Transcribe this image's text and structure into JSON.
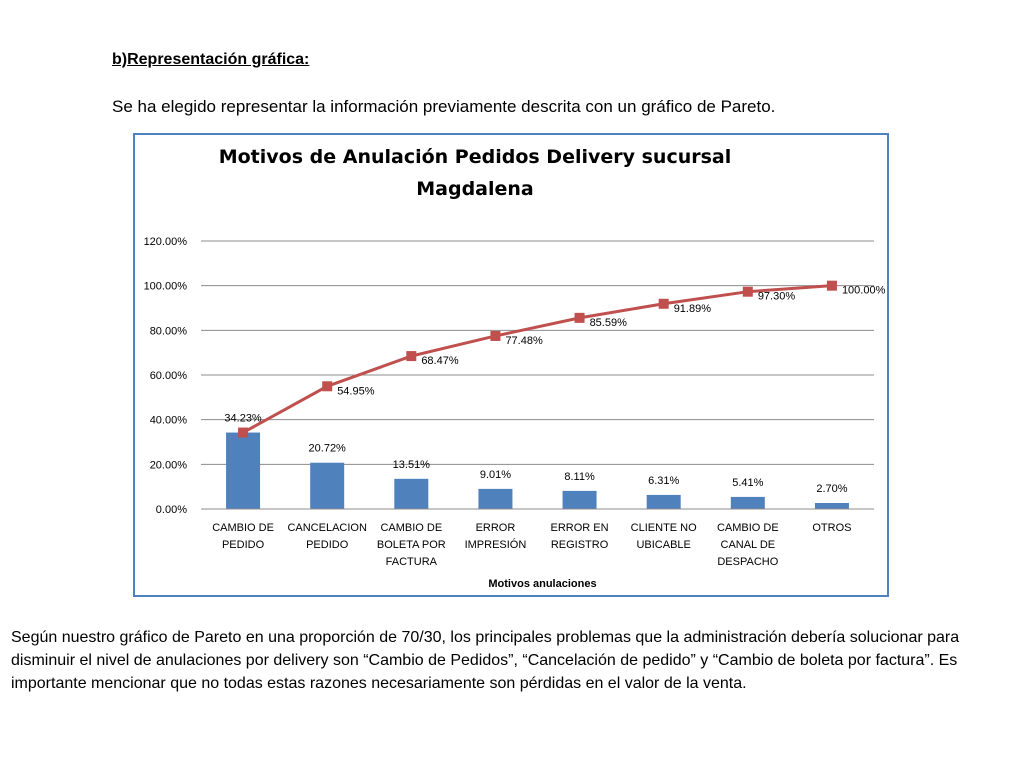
{
  "heading": "b)Representación gráfica:",
  "intro": "Se ha elegido representar la información previamente descrita con un gráfico de Pareto.",
  "conclusion": "Según nuestro gráfico de Pareto en una proporción de 70/30, los principales problemas  que la administración debería solucionar  para disminuir el nivel de anulaciones por delivery  son “Cambio de Pedidos”, “Cancelación de pedido” y “Cambio de boleta por factura”. Es importante mencionar que no todas estas razones necesariamente son pérdidas en el valor de la venta.",
  "colors": {
    "bar": "#4f81bd",
    "line": "#c0504d",
    "frame": "#4f81bd",
    "grid": "#8c8c8c"
  },
  "chart_data": {
    "type": "bar",
    "title": "Motivos de Anulación Pedidos Delivery sucursal Magdalena",
    "xlabel": "Motivos anulaciones",
    "ylabel": "",
    "ylim": [
      0,
      120
    ],
    "yticks": [
      "0.00%",
      "20.00%",
      "40.00%",
      "60.00%",
      "80.00%",
      "100.00%",
      "120.00%"
    ],
    "grid": true,
    "legend": "none",
    "categories": [
      [
        "CAMBIO DE",
        "PEDIDO"
      ],
      [
        "CANCELACION",
        "PEDIDO"
      ],
      [
        "CAMBIO DE",
        "BOLETA POR",
        "FACTURA"
      ],
      [
        "ERROR",
        "IMPRESIÓN"
      ],
      [
        "ERROR EN",
        "REGISTRO"
      ],
      [
        "CLIENTE NO",
        "UBICABLE"
      ],
      [
        "CAMBIO DE",
        "CANAL DE",
        "DESPACHO"
      ],
      [
        "OTROS"
      ]
    ],
    "series": [
      {
        "type": "bar",
        "values": [
          34.23,
          20.72,
          13.51,
          9.01,
          8.11,
          6.31,
          5.41,
          2.7
        ],
        "labels": [
          "34.23%",
          "20.72%",
          "13.51%",
          "9.01%",
          "8.11%",
          "6.31%",
          "5.41%",
          "2.70%"
        ]
      },
      {
        "type": "line",
        "values": [
          34.23,
          54.95,
          68.47,
          77.48,
          85.59,
          91.89,
          97.3,
          100.0
        ],
        "labels": [
          "",
          "54.95%",
          "68.47%",
          "77.48%",
          "85.59%",
          "91.89%",
          "97.30%",
          "100.00%"
        ]
      }
    ]
  }
}
